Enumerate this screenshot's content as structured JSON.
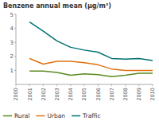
{
  "chart_data": {
    "type": "line",
    "title": "Benzene annual mean (μg/m³)",
    "x": [
      2000,
      2001,
      2002,
      2003,
      2004,
      2005,
      2006,
      2007,
      2008,
      2009,
      2010
    ],
    "series": [
      {
        "name": "Rural",
        "color": "#5a8a1e",
        "values": [
          null,
          0.95,
          0.95,
          0.85,
          0.65,
          0.75,
          0.7,
          0.55,
          0.65,
          0.8,
          0.8
        ]
      },
      {
        "name": "Urban",
        "color": "#e07010",
        "values": [
          null,
          1.85,
          1.45,
          1.65,
          1.65,
          1.55,
          1.4,
          1.1,
          1.0,
          1.0,
          1.0
        ]
      },
      {
        "name": "Traffic",
        "color": "#007070",
        "values": [
          null,
          4.45,
          3.8,
          3.1,
          2.65,
          2.45,
          2.3,
          1.85,
          1.8,
          1.85,
          1.7
        ]
      }
    ],
    "xlim": [
      2000,
      2010
    ],
    "xticks": [
      2000,
      2001,
      2002,
      2003,
      2004,
      2005,
      2006,
      2007,
      2008,
      2009,
      2010
    ],
    "ylim": [
      0,
      5
    ],
    "yticks": [
      1,
      2,
      3,
      4,
      5
    ],
    "grid": false,
    "legend": "bottom"
  }
}
